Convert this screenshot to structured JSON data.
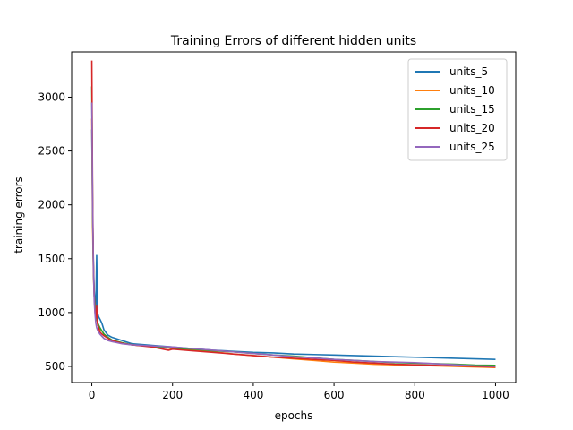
{
  "chart_data": {
    "type": "line",
    "title": "Training Errors of different hidden units",
    "xlabel": "epochs",
    "ylabel": "training errors",
    "xlim": [
      -50,
      1050
    ],
    "ylim": [
      350,
      3420
    ],
    "xticks": [
      0,
      200,
      400,
      600,
      800,
      1000
    ],
    "yticks": [
      500,
      1000,
      1500,
      2000,
      2500,
      3000
    ],
    "grid": false,
    "legend_position": "top-right",
    "series": [
      {
        "name": "units_5",
        "color": "#1f77b4",
        "points": [
          [
            0,
            2700
          ],
          [
            2,
            1900
          ],
          [
            4,
            1450
          ],
          [
            6,
            1200
          ],
          [
            8,
            1100
          ],
          [
            10,
            1050
          ],
          [
            12,
            1530
          ],
          [
            14,
            1000
          ],
          [
            17,
            960
          ],
          [
            20,
            940
          ],
          [
            25,
            900
          ],
          [
            30,
            840
          ],
          [
            40,
            790
          ],
          [
            50,
            770
          ],
          [
            75,
            740
          ],
          [
            100,
            710
          ],
          [
            150,
            695
          ],
          [
            200,
            680
          ],
          [
            250,
            665
          ],
          [
            300,
            650
          ],
          [
            350,
            640
          ],
          [
            400,
            630
          ],
          [
            450,
            625
          ],
          [
            500,
            615
          ],
          [
            550,
            610
          ],
          [
            600,
            605
          ],
          [
            650,
            600
          ],
          [
            700,
            595
          ],
          [
            750,
            590
          ],
          [
            800,
            585
          ],
          [
            850,
            580
          ],
          [
            900,
            575
          ],
          [
            950,
            570
          ],
          [
            1000,
            565
          ]
        ]
      },
      {
        "name": "units_10",
        "color": "#ff7f0e",
        "points": [
          [
            0,
            2800
          ],
          [
            2,
            1800
          ],
          [
            4,
            1350
          ],
          [
            6,
            1150
          ],
          [
            8,
            1050
          ],
          [
            10,
            1000
          ],
          [
            12,
            950
          ],
          [
            15,
            880
          ],
          [
            20,
            850
          ],
          [
            25,
            830
          ],
          [
            30,
            800
          ],
          [
            40,
            765
          ],
          [
            50,
            740
          ],
          [
            75,
            715
          ],
          [
            100,
            700
          ],
          [
            150,
            685
          ],
          [
            200,
            665
          ],
          [
            250,
            650
          ],
          [
            300,
            635
          ],
          [
            350,
            615
          ],
          [
            400,
            600
          ],
          [
            450,
            585
          ],
          [
            500,
            570
          ],
          [
            550,
            555
          ],
          [
            600,
            540
          ],
          [
            650,
            530
          ],
          [
            700,
            520
          ],
          [
            750,
            515
          ],
          [
            800,
            510
          ],
          [
            850,
            505
          ],
          [
            900,
            500
          ],
          [
            950,
            495
          ],
          [
            1000,
            490
          ]
        ]
      },
      {
        "name": "units_15",
        "color": "#2ca02c",
        "points": [
          [
            0,
            3100
          ],
          [
            2,
            1950
          ],
          [
            4,
            1400
          ],
          [
            6,
            1150
          ],
          [
            8,
            1060
          ],
          [
            10,
            980
          ],
          [
            12,
            940
          ],
          [
            15,
            900
          ],
          [
            20,
            860
          ],
          [
            25,
            830
          ],
          [
            30,
            800
          ],
          [
            40,
            770
          ],
          [
            50,
            745
          ],
          [
            75,
            720
          ],
          [
            100,
            700
          ],
          [
            150,
            685
          ],
          [
            200,
            670
          ],
          [
            250,
            660
          ],
          [
            300,
            645
          ],
          [
            350,
            635
          ],
          [
            400,
            620
          ],
          [
            450,
            605
          ],
          [
            500,
            595
          ],
          [
            550,
            580
          ],
          [
            600,
            565
          ],
          [
            650,
            555
          ],
          [
            700,
            545
          ],
          [
            750,
            535
          ],
          [
            800,
            530
          ],
          [
            850,
            525
          ],
          [
            900,
            520
          ],
          [
            950,
            512
          ],
          [
            1000,
            510
          ]
        ]
      },
      {
        "name": "units_20",
        "color": "#d62728",
        "points": [
          [
            0,
            3340
          ],
          [
            2,
            2100
          ],
          [
            4,
            1450
          ],
          [
            6,
            1150
          ],
          [
            8,
            1000
          ],
          [
            10,
            950
          ],
          [
            12,
            1060
          ],
          [
            14,
            900
          ],
          [
            17,
            860
          ],
          [
            20,
            820
          ],
          [
            25,
            800
          ],
          [
            30,
            785
          ],
          [
            40,
            760
          ],
          [
            50,
            740
          ],
          [
            75,
            715
          ],
          [
            100,
            700
          ],
          [
            150,
            680
          ],
          [
            190,
            650
          ],
          [
            200,
            660
          ],
          [
            250,
            645
          ],
          [
            300,
            630
          ],
          [
            350,
            615
          ],
          [
            400,
            600
          ],
          [
            450,
            585
          ],
          [
            500,
            575
          ],
          [
            550,
            565
          ],
          [
            600,
            555
          ],
          [
            650,
            540
          ],
          [
            700,
            530
          ],
          [
            750,
            520
          ],
          [
            800,
            515
          ],
          [
            850,
            510
          ],
          [
            900,
            505
          ],
          [
            950,
            500
          ],
          [
            1000,
            495
          ]
        ]
      },
      {
        "name": "units_25",
        "color": "#9467bd",
        "points": [
          [
            0,
            2950
          ],
          [
            2,
            2000
          ],
          [
            4,
            1400
          ],
          [
            6,
            1100
          ],
          [
            8,
            980
          ],
          [
            10,
            900
          ],
          [
            12,
            860
          ],
          [
            15,
            830
          ],
          [
            20,
            800
          ],
          [
            25,
            780
          ],
          [
            30,
            760
          ],
          [
            40,
            740
          ],
          [
            50,
            730
          ],
          [
            75,
            710
          ],
          [
            100,
            700
          ],
          [
            150,
            690
          ],
          [
            200,
            680
          ],
          [
            250,
            665
          ],
          [
            300,
            650
          ],
          [
            350,
            635
          ],
          [
            400,
            620
          ],
          [
            450,
            605
          ],
          [
            500,
            590
          ],
          [
            550,
            578
          ],
          [
            600,
            565
          ],
          [
            650,
            555
          ],
          [
            700,
            545
          ],
          [
            750,
            540
          ],
          [
            800,
            535
          ],
          [
            850,
            525
          ],
          [
            900,
            515
          ],
          [
            950,
            505
          ],
          [
            1000,
            500
          ]
        ]
      }
    ]
  }
}
